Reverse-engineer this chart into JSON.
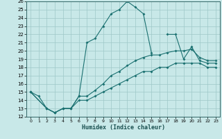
{
  "title": "",
  "xlabel": "Humidex (Indice chaleur)",
  "background_color": "#c8e8e8",
  "line_color": "#1a7070",
  "xlim": [
    -0.5,
    23.5
  ],
  "ylim": [
    12,
    26
  ],
  "xticks": [
    0,
    1,
    2,
    3,
    4,
    5,
    6,
    7,
    8,
    9,
    10,
    11,
    12,
    13,
    14,
    15,
    16,
    17,
    18,
    19,
    20,
    21,
    22,
    23
  ],
  "yticks": [
    12,
    13,
    14,
    15,
    16,
    17,
    18,
    19,
    20,
    21,
    22,
    23,
    24,
    25,
    26
  ],
  "line1_x": [
    0,
    1,
    2,
    3,
    4,
    5,
    6,
    7,
    8,
    9,
    10,
    11,
    12,
    13,
    14,
    15,
    16,
    17,
    18,
    19,
    20,
    21,
    22,
    23
  ],
  "line1_y": [
    15,
    14.5,
    13,
    12.5,
    13,
    13,
    14.5,
    21,
    21.5,
    23,
    24.5,
    25,
    26,
    25.3,
    24.5,
    19.8,
    null,
    22,
    22,
    19,
    20.5,
    18.8,
    18.5,
    18.5
  ],
  "line2_x": [
    0,
    2,
    3,
    4,
    5,
    6,
    7,
    8,
    9,
    10,
    11,
    12,
    13,
    14,
    15,
    16,
    17,
    18,
    19,
    20,
    21,
    22,
    23
  ],
  "line2_y": [
    15,
    13,
    12.5,
    13,
    13,
    14.5,
    14.5,
    15.2,
    16,
    17,
    17.5,
    18.2,
    18.8,
    19.2,
    19.5,
    19.5,
    19.8,
    20,
    20,
    20.2,
    19.2,
    18.8,
    18.8
  ],
  "line3_x": [
    0,
    2,
    3,
    4,
    5,
    6,
    7,
    8,
    9,
    10,
    11,
    12,
    13,
    14,
    15,
    16,
    17,
    18,
    19,
    20,
    21,
    22,
    23
  ],
  "line3_y": [
    15,
    13,
    12.5,
    13,
    13,
    14,
    14,
    14.5,
    15,
    15.5,
    16,
    16.5,
    17,
    17.5,
    17.5,
    18,
    18,
    18.5,
    18.5,
    18.5,
    18.5,
    18,
    18
  ]
}
